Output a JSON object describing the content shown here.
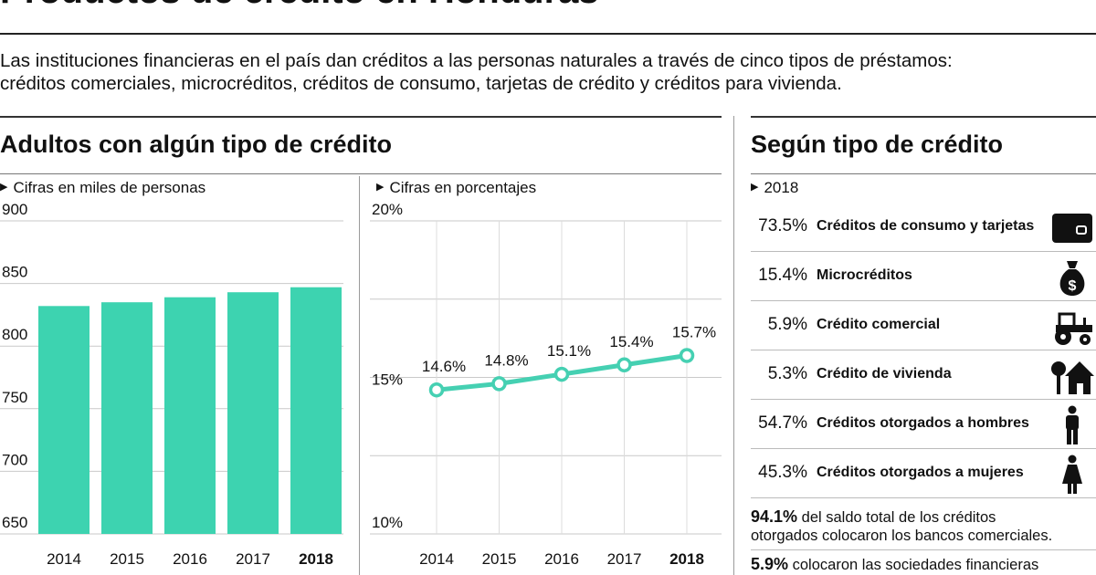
{
  "header": {
    "title": "Productos de crédito en Honduras",
    "intro_line1": "Las instituciones financieras en el país dan créditos a las personas naturales a través de cinco tipos de préstamos:",
    "intro_line2": "créditos comerciales, microcréditos, créditos de consumo, tarjetas de crédito y créditos para vivienda."
  },
  "left_section": {
    "heading": "Adultos con algún tipo de crédito",
    "bar_sublabel": "Cifras en miles de personas",
    "line_sublabel": "Cifras en porcentajes"
  },
  "right_section": {
    "heading": "Según tipo de crédito",
    "year": "2018",
    "items": [
      {
        "pct": "73.5%",
        "label": "Créditos de consumo y tarjetas",
        "icon": "credit-card-icon"
      },
      {
        "pct": "15.4%",
        "label": "Microcréditos",
        "icon": "money-bag-icon"
      },
      {
        "pct": "5.9%",
        "label": "Crédito comercial",
        "icon": "tractor-icon"
      },
      {
        "pct": "5.3%",
        "label": "Crédito de vivienda",
        "icon": "house-icon"
      },
      {
        "pct": "54.7%",
        "label": "Créditos otorgados a hombres",
        "icon": "man-icon"
      },
      {
        "pct": "45.3%",
        "label": "Créditos otorgados a mujeres",
        "icon": "woman-icon"
      }
    ],
    "note1_pct": "94.1%",
    "note1_text_a": "del saldo total de los créditos",
    "note1_text_b": "otorgados colocaron los bancos comerciales.",
    "note2_pct": "5.9%",
    "note2_text": "colocaron las sociedades financieras"
  },
  "colors": {
    "teal": "#3dd3b0",
    "line_teal": "#45d0b2",
    "text": "#111111",
    "rule": "#333333"
  },
  "chart_data": [
    {
      "type": "bar",
      "title": "Adultos con algún tipo de crédito",
      "ylabel": "Cifras en miles de personas",
      "categories": [
        "2014",
        "2015",
        "2016",
        "2017",
        "2018"
      ],
      "values": [
        832,
        835,
        839,
        843,
        847
      ],
      "ylim": [
        650,
        900
      ],
      "yticks": [
        "900",
        "850",
        "800",
        "750",
        "700",
        "650"
      ],
      "ytick_values": [
        900,
        850,
        800,
        750,
        700,
        650
      ],
      "bold_category": "2018"
    },
    {
      "type": "line",
      "ylabel": "Cifras en porcentajes",
      "categories": [
        "2014",
        "2015",
        "2016",
        "2017",
        "2018"
      ],
      "values": [
        14.6,
        14.8,
        15.1,
        15.4,
        15.7
      ],
      "value_labels": [
        "14.6%",
        "14.8%",
        "15.1%",
        "15.4%",
        "15.7%"
      ],
      "ylim": [
        10,
        20
      ],
      "yticks": [
        "20%",
        "15%",
        "10%"
      ],
      "ytick_values": [
        20,
        15,
        10
      ],
      "bold_category": "2018"
    }
  ]
}
